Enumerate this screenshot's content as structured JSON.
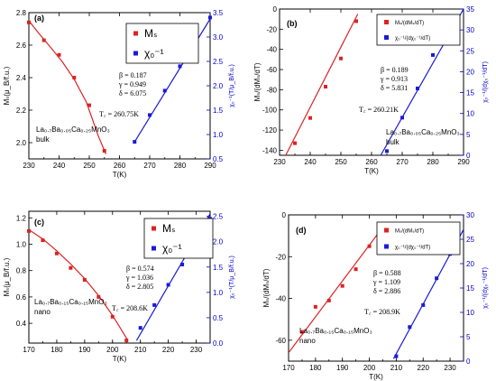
{
  "colors": {
    "red": "#dd2222",
    "blue": "#1a1ad8",
    "right_axis": "#0000cc"
  },
  "chart_data": [
    {
      "type": "scatter",
      "panel_label": "(a)",
      "xlabel": "T(K)",
      "ylabel": "Mₛ(μ_B/f.u.)",
      "y2label": "χ₀⁻¹(T/μ_B/f.u.)",
      "xlim": [
        230,
        290
      ],
      "ylim": [
        1.9,
        2.8
      ],
      "y2lim": [
        0.5,
        3.5
      ],
      "xticks": [
        "230",
        "240",
        "250",
        "260",
        "270",
        "280",
        "290"
      ],
      "yticks": [
        "2.0",
        "2.2",
        "2.4",
        "2.6",
        "2.8"
      ],
      "y2ticks": [
        "0.5",
        "1.0",
        "1.5",
        "2.0",
        "2.5",
        "3.0",
        "3.5"
      ],
      "legend": [
        "Mₛ",
        "χ₀⁻¹"
      ],
      "exponents": [
        "β = 0.187",
        "γ = 0.949",
        "δ = 6.075"
      ],
      "tc_text": "T꜀ = 260.75K",
      "sample_text": [
        "La₀.₇Ba₀.₀₅Ca₀.₂₅MnO₃",
        "bulk"
      ],
      "series": [
        {
          "name": "Mₛ",
          "axis": "left",
          "x": [
            230,
            235,
            240,
            245,
            250,
            255
          ],
          "y": [
            2.74,
            2.63,
            2.54,
            2.4,
            2.23,
            1.95
          ]
        },
        {
          "name": "χ₀⁻¹",
          "axis": "right",
          "x": [
            265,
            270,
            275,
            280,
            285,
            290
          ],
          "y": [
            0.85,
            1.4,
            1.9,
            2.4,
            2.9,
            3.4
          ]
        }
      ],
      "fits": [
        {
          "axis": "left",
          "x": [
            230,
            233,
            237,
            241,
            245,
            249,
            253,
            255.5
          ],
          "y": [
            2.75,
            2.68,
            2.59,
            2.5,
            2.39,
            2.25,
            2.04,
            1.93
          ]
        },
        {
          "axis": "right",
          "x": [
            265,
            290
          ],
          "y": [
            0.85,
            3.37
          ]
        }
      ]
    },
    {
      "type": "scatter",
      "panel_label": "(b)",
      "xlabel": "T(K)",
      "ylabel": "Mₛ/(dMₛ/dT)",
      "y2label": "χ₀⁻¹/(dχ₀⁻¹/dT)",
      "xlim": [
        230,
        290
      ],
      "ylim": [
        -145,
        0
      ],
      "y2lim": [
        0,
        35
      ],
      "xticks": [
        "230",
        "240",
        "250",
        "260",
        "270",
        "280",
        "290"
      ],
      "yticks": [
        "-140",
        "-120",
        "-100",
        "-80",
        "-60",
        "-40",
        "-20",
        "0"
      ],
      "y2ticks": [
        "0",
        "5",
        "10",
        "15",
        "20",
        "25",
        "30",
        "35"
      ],
      "legend": [
        "Mₛ/(dMₛ/dT)",
        "χ₀⁻¹/(dχ₀⁻¹/dT)"
      ],
      "exponents": [
        "β = 0.189",
        "γ = 0.913",
        "δ = 5.831"
      ],
      "tc_text": "T꜀ = 260.21K",
      "sample_text": [
        "La₀.₇Ba₀.₀₅Ca₀.₂₅MnO₃",
        "bulk"
      ],
      "series": [
        {
          "name": "Mₛ/(dMₛ/dT)",
          "axis": "left",
          "x": [
            235,
            240,
            245,
            250,
            255
          ],
          "y": [
            -133,
            -108,
            -77,
            -49,
            -12
          ]
        },
        {
          "name": "χ₀⁻¹/(dχ₀⁻¹/dT)",
          "axis": "right",
          "x": [
            265,
            270,
            275,
            280,
            285
          ],
          "y": [
            1,
            9,
            16,
            24,
            30
          ]
        }
      ],
      "fits": [
        {
          "axis": "left",
          "x": [
            232,
            255.5
          ],
          "y": [
            -145,
            -5
          ]
        },
        {
          "axis": "right",
          "x": [
            263,
            290
          ],
          "y": [
            0,
            35
          ]
        }
      ]
    },
    {
      "type": "scatter",
      "panel_label": "(c)",
      "xlabel": "T(K)",
      "ylabel": "Mₛ(μ_B/f.u.)",
      "y2label": "χ₀⁻¹(T/μ_B/f.u.)",
      "xlim": [
        170,
        235
      ],
      "ylim": [
        0.25,
        1.25
      ],
      "y2lim": [
        0,
        2.6
      ],
      "xticks": [
        "170",
        "180",
        "190",
        "200",
        "210",
        "220",
        "230"
      ],
      "yticks": [
        "0.4",
        "0.6",
        "0.8",
        "1.0",
        "1.2"
      ],
      "y2ticks": [
        "0.0",
        "0.5",
        "1.0",
        "1.5",
        "2.0",
        "2.5"
      ],
      "legend": [
        "Mₛ",
        "χ₀⁻¹"
      ],
      "exponents": [
        "β = 0.574",
        "γ = 1.036",
        "δ = 2.805"
      ],
      "tc_text": "T꜀ = 208.6K",
      "sample_text": [
        "La₀.₇Ba₀.₁₅Ca₀.₁₅MnO₃",
        "nano"
      ],
      "series": [
        {
          "name": "Mₛ",
          "axis": "left",
          "x": [
            170,
            175,
            180,
            185,
            190,
            195,
            200,
            205
          ],
          "y": [
            1.1,
            1.03,
            0.93,
            0.82,
            0.73,
            0.6,
            0.45,
            0.27
          ]
        },
        {
          "name": "χ₀⁻¹",
          "axis": "right",
          "x": [
            210,
            215,
            220,
            225,
            230,
            235
          ],
          "y": [
            0.3,
            0.75,
            1.15,
            1.55,
            2.0,
            2.45
          ]
        }
      ],
      "fits": [
        {
          "axis": "left",
          "x": [
            170,
            175,
            180,
            185,
            190,
            195,
            200,
            205.5
          ],
          "y": [
            1.11,
            1.04,
            0.95,
            0.85,
            0.74,
            0.61,
            0.46,
            0.27
          ]
        },
        {
          "axis": "right",
          "x": [
            208.6,
            235
          ],
          "y": [
            0.05,
            2.55
          ]
        }
      ]
    },
    {
      "type": "scatter",
      "panel_label": "(d)",
      "xlabel": "T(K)",
      "ylabel": "Mₛ/(dMₛ/dT)",
      "y2label": "χ₀⁻¹/(dχ₀⁻¹/dT)",
      "xlim": [
        170,
        235
      ],
      "ylim": [
        -70,
        0
      ],
      "y2lim": [
        0,
        30
      ],
      "xticks": [
        "170",
        "180",
        "190",
        "200",
        "210",
        "220",
        "230"
      ],
      "yticks": [
        "-60",
        "-40",
        "-20",
        "0"
      ],
      "y2ticks": [
        "0",
        "5",
        "10",
        "15",
        "20",
        "25",
        "30"
      ],
      "legend": [
        "Mₛ/(dMₛ/dT)",
        "χ₀⁻¹/(dχ₀⁻¹/dT)"
      ],
      "exponents": [
        "β = 0.588",
        "γ = 1.109",
        "δ = 2.886"
      ],
      "tc_text": "T꜀ = 208.9K",
      "sample_text": [
        "La₀.₇Ba₀.₁₅Ca₀.₁₅MnO₃",
        "nano"
      ],
      "series": [
        {
          "name": "Mₛ/(dMₛ/dT)",
          "axis": "left",
          "x": [
            175,
            180,
            185,
            190,
            195,
            200,
            205
          ],
          "y": [
            -56,
            -44,
            -41,
            -34,
            -26,
            -15,
            -7
          ]
        },
        {
          "name": "χ₀⁻¹/(dχ₀⁻¹/dT)",
          "axis": "right",
          "x": [
            210,
            215,
            220,
            225,
            230
          ],
          "y": [
            1,
            7,
            11.5,
            17,
            22
          ]
        }
      ],
      "fits": [
        {
          "axis": "left",
          "x": [
            170,
            205.5
          ],
          "y": [
            -66,
            -5
          ]
        },
        {
          "axis": "right",
          "x": [
            209,
            235
          ],
          "y": [
            0.5,
            27
          ]
        }
      ]
    }
  ]
}
